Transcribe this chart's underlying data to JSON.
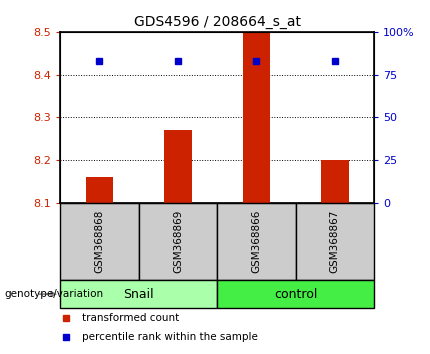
{
  "title": "GDS4596 / 208664_s_at",
  "samples": [
    "GSM368868",
    "GSM368869",
    "GSM368866",
    "GSM368867"
  ],
  "bar_values": [
    8.16,
    8.27,
    8.5,
    8.2
  ],
  "bar_baseline": 8.1,
  "percentile_values": [
    83,
    83,
    83,
    83
  ],
  "bar_color": "#cc2200",
  "percentile_color": "#0000cc",
  "ylim_left": [
    8.1,
    8.5
  ],
  "ylim_right": [
    0,
    100
  ],
  "yticks_left": [
    8.1,
    8.2,
    8.3,
    8.4,
    8.5
  ],
  "yticks_right": [
    0,
    25,
    50,
    75,
    100
  ],
  "ytick_labels_right": [
    "0",
    "25",
    "50",
    "75",
    "100%"
  ],
  "grid_lines": [
    8.2,
    8.3,
    8.4
  ],
  "groups": [
    {
      "name": "Snail",
      "samples": [
        0,
        1
      ],
      "color": "#aaffaa"
    },
    {
      "name": "control",
      "samples": [
        2,
        3
      ],
      "color": "#44ee44"
    }
  ],
  "group_label": "genotype/variation",
  "legend_items": [
    {
      "label": "transformed count",
      "color": "#cc2200"
    },
    {
      "label": "percentile rank within the sample",
      "color": "#0000cc"
    }
  ],
  "bar_width": 0.35,
  "sample_box_color": "#cccccc",
  "fig_width": 4.3,
  "fig_height": 3.54
}
